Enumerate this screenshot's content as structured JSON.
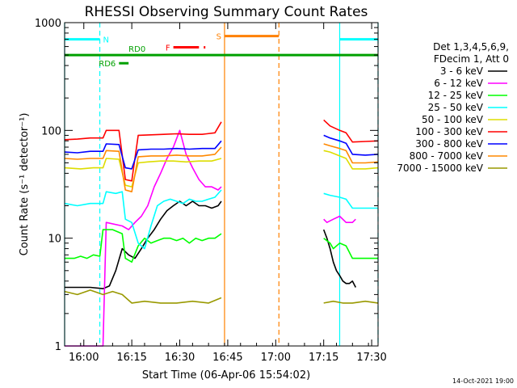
{
  "chart_data": {
    "type": "line",
    "title": "RHESSI Observing Summary Count Rates",
    "xlabel": "Start Time (06-Apr-06 15:54:02)",
    "ylabel": "Count Rate (s⁻¹ detector⁻¹)",
    "ylog": true,
    "ylim": [
      1,
      1000
    ],
    "xlim_minutes": [
      0,
      98
    ],
    "x_ticks": [
      {
        "m": 6,
        "label": "16:00"
      },
      {
        "m": 21,
        "label": "16:15"
      },
      {
        "m": 36,
        "label": "16:30"
      },
      {
        "m": 51,
        "label": "16:45"
      },
      {
        "m": 66,
        "label": "17:00"
      },
      {
        "m": 81,
        "label": "17:15"
      },
      {
        "m": 96,
        "label": "17:30"
      }
    ],
    "y_ticks": [
      {
        "v": 1,
        "label": "1"
      },
      {
        "v": 10,
        "label": "10"
      },
      {
        "v": 100,
        "label": "100"
      },
      {
        "v": 1000,
        "label": "1000"
      }
    ],
    "legend_header": [
      "Det 1,3,4,5,6,9,",
      "FDecim 1, Att 0"
    ],
    "legend_placement": "right",
    "timestamp": "14-Oct-2021 19:00",
    "series": [
      {
        "name": "3 - 6 keV",
        "color": "#000000",
        "segments": [
          [
            [
              0,
              3.5
            ],
            [
              8,
              3.5
            ],
            [
              12,
              3.4
            ],
            [
              14,
              3.6
            ],
            [
              16,
              5
            ],
            [
              18,
              8
            ],
            [
              20,
              7
            ],
            [
              22,
              6.5
            ],
            [
              24,
              8
            ],
            [
              26,
              10
            ],
            [
              28,
              12
            ],
            [
              30,
              15
            ],
            [
              32,
              18
            ],
            [
              34,
              20
            ],
            [
              36,
              22
            ],
            [
              38,
              20
            ],
            [
              40,
              22
            ],
            [
              42,
              20
            ],
            [
              44,
              20
            ],
            [
              46,
              19
            ],
            [
              48,
              20
            ],
            [
              49,
              22
            ]
          ],
          [
            [
              81,
              12
            ],
            [
              82,
              10
            ],
            [
              83,
              8
            ],
            [
              84,
              6
            ],
            [
              85,
              5
            ],
            [
              86,
              4.5
            ],
            [
              87,
              4
            ],
            [
              88,
              3.8
            ],
            [
              89,
              3.8
            ],
            [
              90,
              4
            ],
            [
              91,
              3.5
            ]
          ]
        ]
      },
      {
        "name": "6 - 12 keV",
        "color": "#ff00ff",
        "segments": [
          [
            [
              0,
              1
            ],
            [
              12,
              1
            ],
            [
              13,
              14
            ],
            [
              18,
              13
            ],
            [
              20,
              12
            ],
            [
              22,
              14
            ],
            [
              24,
              16
            ],
            [
              26,
              20
            ],
            [
              28,
              30
            ],
            [
              30,
              40
            ],
            [
              32,
              55
            ],
            [
              34,
              70
            ],
            [
              36,
              100
            ],
            [
              38,
              60
            ],
            [
              40,
              45
            ],
            [
              42,
              35
            ],
            [
              44,
              30
            ],
            [
              46,
              30
            ],
            [
              48,
              28
            ],
            [
              49,
              30
            ]
          ],
          [
            [
              81,
              15
            ],
            [
              82,
              14
            ],
            [
              84,
              15
            ],
            [
              86,
              16
            ],
            [
              88,
              14
            ],
            [
              90,
              14
            ],
            [
              91,
              15
            ]
          ]
        ]
      },
      {
        "name": "12 - 25 keV",
        "color": "#00ff00",
        "segments": [
          [
            [
              0,
              6.5
            ],
            [
              3,
              6.5
            ],
            [
              5,
              6.8
            ],
            [
              7,
              6.5
            ],
            [
              9,
              7
            ],
            [
              11,
              6.8
            ],
            [
              12,
              12
            ],
            [
              15,
              12
            ],
            [
              18,
              11
            ],
            [
              19,
              6.5
            ],
            [
              21,
              6
            ],
            [
              23,
              8.5
            ],
            [
              25,
              10
            ],
            [
              27,
              9
            ],
            [
              29,
              9.5
            ],
            [
              31,
              10
            ],
            [
              33,
              10
            ],
            [
              35,
              9.5
            ],
            [
              37,
              10
            ],
            [
              39,
              9
            ],
            [
              41,
              10
            ],
            [
              43,
              9.5
            ],
            [
              45,
              10
            ],
            [
              47,
              10
            ],
            [
              49,
              11
            ]
          ],
          [
            [
              81,
              10
            ],
            [
              83,
              9
            ],
            [
              84,
              8
            ],
            [
              86,
              9
            ],
            [
              88,
              8.5
            ],
            [
              90,
              6.5
            ],
            [
              94,
              6.5
            ],
            [
              98,
              6.5
            ]
          ]
        ]
      },
      {
        "name": "25 - 50 keV",
        "color": "#00ffff",
        "segments": [
          [
            [
              0,
              21
            ],
            [
              4,
              20
            ],
            [
              8,
              21
            ],
            [
              12,
              21
            ],
            [
              13,
              27
            ],
            [
              16,
              26
            ],
            [
              18,
              27
            ],
            [
              19,
              15
            ],
            [
              21,
              14
            ],
            [
              23,
              9
            ],
            [
              25,
              8
            ],
            [
              27,
              13
            ],
            [
              29,
              20
            ],
            [
              31,
              22
            ],
            [
              33,
              23
            ],
            [
              35,
              22
            ],
            [
              37,
              21
            ],
            [
              39,
              23
            ],
            [
              41,
              22
            ],
            [
              43,
              22
            ],
            [
              45,
              23
            ],
            [
              47,
              24
            ],
            [
              49,
              28
            ]
          ],
          [
            [
              81,
              26
            ],
            [
              83,
              25
            ],
            [
              86,
              24
            ],
            [
              88,
              23
            ],
            [
              90,
              19
            ],
            [
              94,
              19
            ],
            [
              98,
              19
            ]
          ]
        ]
      },
      {
        "name": "50 - 100 keV",
        "color": "#dddd00",
        "segments": [
          [
            [
              0,
              45
            ],
            [
              5,
              44
            ],
            [
              9,
              45
            ],
            [
              12,
              45
            ],
            [
              13,
              55
            ],
            [
              17,
              54
            ],
            [
              19,
              31
            ],
            [
              21,
              30
            ],
            [
              23,
              50
            ],
            [
              26,
              51
            ],
            [
              30,
              52
            ],
            [
              34,
              52
            ],
            [
              38,
              51
            ],
            [
              42,
              52
            ],
            [
              46,
              52
            ],
            [
              49,
              55
            ]
          ],
          [
            [
              81,
              65
            ],
            [
              83,
              63
            ],
            [
              86,
              58
            ],
            [
              88,
              55
            ],
            [
              90,
              44
            ],
            [
              94,
              44
            ],
            [
              98,
              45
            ]
          ]
        ]
      },
      {
        "name": "100 - 300 keV",
        "color": "#ff0000",
        "segments": [
          [
            [
              0,
              82
            ],
            [
              4,
              83
            ],
            [
              8,
              85
            ],
            [
              12,
              85
            ],
            [
              13,
              100
            ],
            [
              17,
              100
            ],
            [
              19,
              35
            ],
            [
              21,
              34
            ],
            [
              23,
              90
            ],
            [
              27,
              91
            ],
            [
              31,
              92
            ],
            [
              35,
              93
            ],
            [
              39,
              92
            ],
            [
              43,
              92
            ],
            [
              47,
              95
            ],
            [
              49,
              120
            ]
          ],
          [
            [
              81,
              125
            ],
            [
              83,
              110
            ],
            [
              86,
              100
            ],
            [
              88,
              95
            ],
            [
              90,
              78
            ],
            [
              94,
              79
            ],
            [
              98,
              80
            ]
          ]
        ]
      },
      {
        "name": "300 - 800 keV",
        "color": "#0000ff",
        "segments": [
          [
            [
              0,
              63
            ],
            [
              4,
              62
            ],
            [
              8,
              64
            ],
            [
              12,
              64
            ],
            [
              13,
              75
            ],
            [
              17,
              74
            ],
            [
              19,
              45
            ],
            [
              21,
              44
            ],
            [
              23,
              66
            ],
            [
              27,
              67
            ],
            [
              31,
              67
            ],
            [
              35,
              68
            ],
            [
              39,
              67
            ],
            [
              43,
              68
            ],
            [
              47,
              68
            ],
            [
              49,
              80
            ]
          ],
          [
            [
              81,
              90
            ],
            [
              83,
              85
            ],
            [
              86,
              80
            ],
            [
              88,
              76
            ],
            [
              90,
              60
            ],
            [
              94,
              59
            ],
            [
              98,
              60
            ]
          ]
        ]
      },
      {
        "name": "800 - 7000 keV",
        "color": "#ff8800",
        "segments": [
          [
            [
              0,
              55
            ],
            [
              4,
              54
            ],
            [
              8,
              55
            ],
            [
              12,
              55
            ],
            [
              13,
              65
            ],
            [
              17,
              64
            ],
            [
              19,
              28
            ],
            [
              21,
              27
            ],
            [
              23,
              57
            ],
            [
              27,
              58
            ],
            [
              31,
              58
            ],
            [
              35,
              59
            ],
            [
              39,
              58
            ],
            [
              43,
              58
            ],
            [
              47,
              60
            ],
            [
              49,
              70
            ]
          ],
          [
            [
              81,
              75
            ],
            [
              83,
              72
            ],
            [
              86,
              68
            ],
            [
              88,
              65
            ],
            [
              90,
              50
            ],
            [
              94,
              50
            ],
            [
              98,
              51
            ]
          ]
        ]
      },
      {
        "name": "7000 - 15000 keV",
        "color": "#999900",
        "segments": [
          [
            [
              0,
              3.2
            ],
            [
              4,
              3
            ],
            [
              8,
              3.3
            ],
            [
              12,
              3
            ],
            [
              15,
              3.2
            ],
            [
              18,
              3
            ],
            [
              21,
              2.5
            ],
            [
              25,
              2.6
            ],
            [
              30,
              2.5
            ],
            [
              35,
              2.5
            ],
            [
              40,
              2.6
            ],
            [
              45,
              2.5
            ],
            [
              49,
              2.8
            ]
          ],
          [
            [
              81,
              2.5
            ],
            [
              84,
              2.6
            ],
            [
              87,
              2.5
            ],
            [
              90,
              2.5
            ],
            [
              94,
              2.6
            ],
            [
              98,
              2.5
            ]
          ]
        ]
      }
    ],
    "flags": [
      {
        "label": "N",
        "color": "#00ffff",
        "level": 700,
        "ranges": [
          [
            0,
            11
          ],
          [
            86,
            98
          ]
        ]
      },
      {
        "label": "S",
        "color": "#ff8000",
        "level": 750,
        "ranges": [
          [
            50,
            67
          ]
        ]
      },
      {
        "label": "F",
        "color": "#ff0000",
        "level": 590,
        "ranges": [
          [
            34,
            42
          ],
          [
            43.5,
            44
          ]
        ]
      },
      {
        "label": "RD0",
        "color": "#00a000",
        "level": 500,
        "ranges": [
          [
            0,
            98
          ]
        ]
      },
      {
        "label": "RD6",
        "color": "#00a000",
        "level": 420,
        "ranges": [
          [
            17,
            20
          ]
        ]
      }
    ],
    "vlines": [
      {
        "m": 0,
        "color": "#00ffff",
        "dashed": false
      },
      {
        "m": 11,
        "color": "#00ffff",
        "dashed": true
      },
      {
        "m": 50,
        "color": "#ff8000",
        "dashed": false
      },
      {
        "m": 67,
        "color": "#ff8000",
        "dashed": true
      },
      {
        "m": 86,
        "color": "#00ffff",
        "dashed": false
      },
      {
        "m": 98,
        "color": "#00ffff",
        "dashed": true
      }
    ]
  }
}
